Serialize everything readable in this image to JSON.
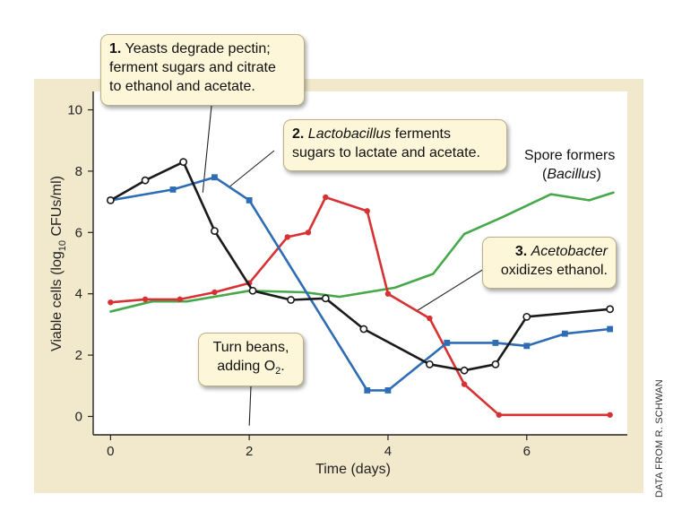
{
  "chart_data": {
    "type": "line",
    "title": "",
    "xlabel": "Time (days)",
    "ylabel_pre": "Viable cells (log",
    "ylabel_sub": "10",
    "ylabel_post": " CFUs/ml)",
    "xlim": [
      -0.25,
      7.45
    ],
    "ylim": [
      -0.6,
      10.6
    ],
    "xticks": [
      0,
      2,
      4,
      6
    ],
    "yticks": [
      0,
      2,
      4,
      6,
      8,
      10
    ],
    "grid": false,
    "series": [
      {
        "name": "Yeasts",
        "color": "#1a1a1a",
        "marker": "open-circle",
        "points": [
          [
            0,
            7.05
          ],
          [
            0.5,
            7.7
          ],
          [
            1.05,
            8.3
          ],
          [
            1.5,
            6.05
          ],
          [
            2.05,
            4.1
          ],
          [
            2.6,
            3.8
          ],
          [
            3.1,
            3.85
          ],
          [
            3.65,
            2.85
          ],
          [
            4.6,
            1.7
          ],
          [
            5.1,
            1.5
          ],
          [
            5.55,
            1.7
          ],
          [
            6.0,
            3.25
          ],
          [
            7.2,
            3.5
          ]
        ]
      },
      {
        "name": "Lactobacillus",
        "color": "#2e6db5",
        "marker": "square",
        "points": [
          [
            0,
            7.05
          ],
          [
            0.9,
            7.4
          ],
          [
            1.5,
            7.8
          ],
          [
            2.0,
            7.05
          ],
          [
            3.7,
            0.85
          ],
          [
            4.0,
            0.85
          ],
          [
            4.85,
            2.4
          ],
          [
            5.55,
            2.4
          ],
          [
            6.0,
            2.3
          ],
          [
            6.55,
            2.7
          ],
          [
            7.2,
            2.85
          ]
        ]
      },
      {
        "name": "Acetobacter",
        "color": "#d73233",
        "marker": "dot",
        "points": [
          [
            0,
            3.72
          ],
          [
            0.5,
            3.82
          ],
          [
            1.0,
            3.82
          ],
          [
            1.5,
            4.05
          ],
          [
            2.0,
            4.35
          ],
          [
            2.55,
            5.85
          ],
          [
            2.85,
            6.0
          ],
          [
            3.1,
            7.15
          ],
          [
            3.7,
            6.7
          ],
          [
            4.0,
            4.0
          ],
          [
            4.6,
            3.2
          ],
          [
            5.1,
            1.05
          ],
          [
            5.6,
            0.05
          ],
          [
            7.2,
            0.05
          ]
        ]
      },
      {
        "name": "Spore formers",
        "color": "#46a84a",
        "marker": "none",
        "points": [
          [
            0,
            3.42
          ],
          [
            0.6,
            3.75
          ],
          [
            1.1,
            3.75
          ],
          [
            2.0,
            4.1
          ],
          [
            2.8,
            4.05
          ],
          [
            3.3,
            3.9
          ],
          [
            4.1,
            4.2
          ],
          [
            4.65,
            4.65
          ],
          [
            5.1,
            5.95
          ],
          [
            5.65,
            6.5
          ],
          [
            6.35,
            7.25
          ],
          [
            6.9,
            7.05
          ],
          [
            7.25,
            7.3
          ]
        ]
      }
    ],
    "annotations": [
      {
        "num": "1.",
        "line1": "Yeasts degrade pectin;",
        "line2": "ferment sugars and citrate",
        "line3": "to ethanol and acetate."
      },
      {
        "num": "2.",
        "italic": "Lactobacillus",
        "line1": " ferments",
        "line2": "sugars to lactate and acetate."
      },
      {
        "line1": "Spore formers",
        "line2_pre": "(",
        "italic": "Bacillus",
        "line2_post": ")"
      },
      {
        "num": "3.",
        "italic": "Acetobacter",
        "line2": "oxidizes ethanol."
      },
      {
        "line1": "Turn beans,",
        "line2_pre": "adding O",
        "sub": "2",
        "line2_post": "."
      }
    ],
    "credit": "DATA FROM R. SCHWAN"
  },
  "colors": {
    "panel_bg": "#f2e8cb",
    "plot_bg": "#ffffff",
    "callout_bg": "#fdf6d8"
  }
}
